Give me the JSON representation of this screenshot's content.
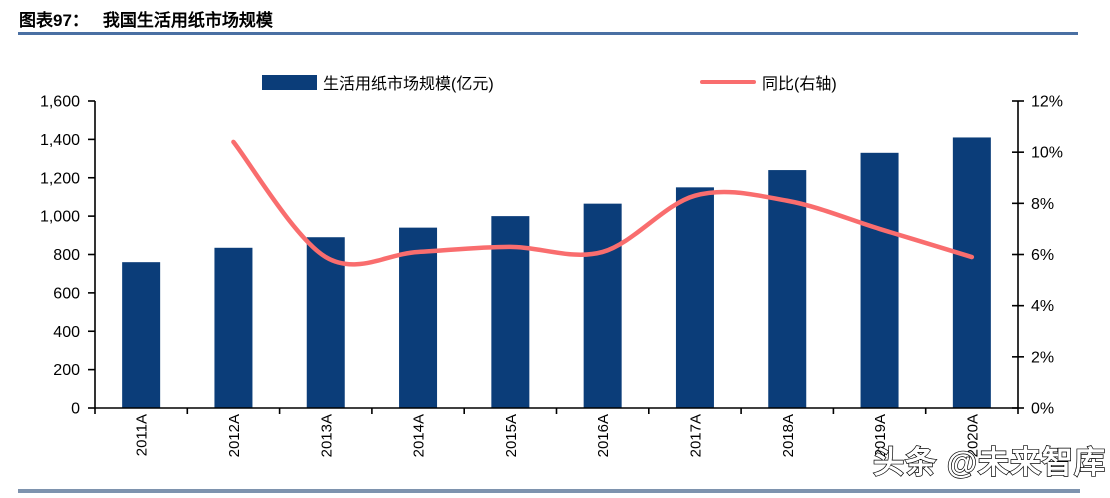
{
  "figure": {
    "caption_label": "图表97：",
    "caption_title": "我国生活用纸市场规模"
  },
  "legend": {
    "bar_label": "生活用纸市场规模(亿元)",
    "line_label": "同比(右轴)"
  },
  "watermark": "头条 @未来智库",
  "colors": {
    "bar": "#0b3d79",
    "line": "#f96d6e",
    "axis": "#000000",
    "title_rule": "#4a70a3",
    "footer_rule": "#7e93ae"
  },
  "chart_data": {
    "type": "bar",
    "title": "我国生活用纸市场规模",
    "categories": [
      "2011A",
      "2012A",
      "2013A",
      "2014A",
      "2015A",
      "2016A",
      "2017A",
      "2018A",
      "2019A",
      "2020A"
    ],
    "series": [
      {
        "name": "生活用纸市场规模(亿元)",
        "type": "bar",
        "axis": "left",
        "values": [
          760,
          835,
          890,
          940,
          1000,
          1065,
          1150,
          1240,
          1330,
          1410
        ]
      },
      {
        "name": "同比(右轴)",
        "type": "line",
        "axis": "right",
        "values": [
          null,
          10.4,
          5.9,
          6.1,
          6.3,
          6.1,
          8.3,
          8.1,
          7.0,
          5.9
        ]
      }
    ],
    "left_axis": {
      "min": 0,
      "max": 1600,
      "step": 200,
      "tick_labels": [
        "0",
        "200",
        "400",
        "600",
        "800",
        "1,000",
        "1,200",
        "1,400",
        "1,600"
      ]
    },
    "right_axis": {
      "min": 0,
      "max": 12,
      "step": 2,
      "tick_labels": [
        "0%",
        "2%",
        "4%",
        "6%",
        "8%",
        "10%",
        "12%"
      ]
    },
    "legend_position": "top",
    "grid": false
  }
}
